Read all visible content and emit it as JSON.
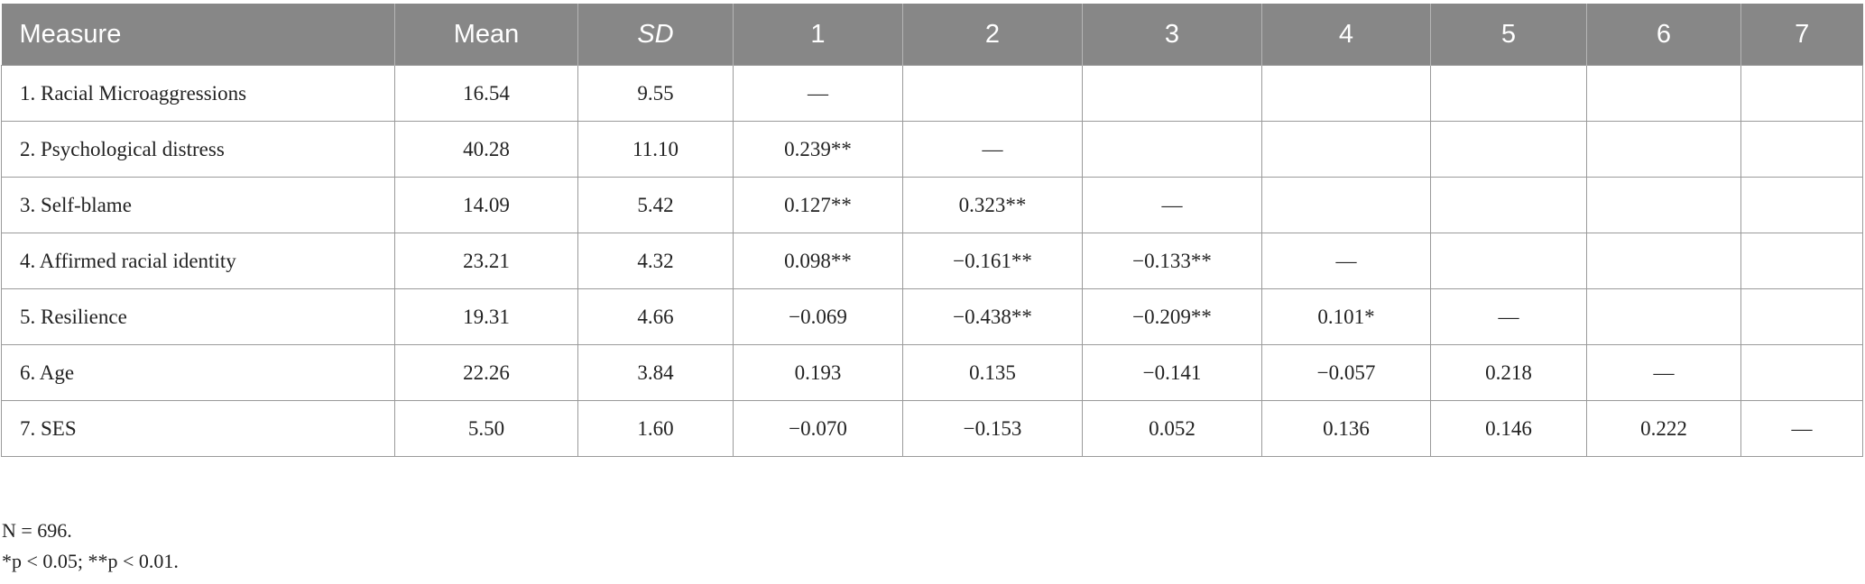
{
  "table": {
    "header": [
      "Measure",
      "Mean",
      "SD",
      "1",
      "2",
      "3",
      "4",
      "5",
      "6",
      "7"
    ],
    "rows": [
      [
        "1.  Racial Microaggressions",
        "16.54",
        "9.55",
        "—"
      ],
      [
        "2.  Psychological distress",
        "40.28",
        "11.10",
        "0.239**",
        "—"
      ],
      [
        "3.  Self-blame",
        "14.09",
        "5.42",
        "0.127**",
        "0.323**",
        "—"
      ],
      [
        "4.  Affirmed racial identity",
        "23.21",
        "4.32",
        "0.098**",
        "−0.161**",
        "−0.133**",
        "—"
      ],
      [
        "5.  Resilience",
        "19.31",
        "4.66",
        "−0.069",
        "−0.438**",
        "−0.209**",
        "0.101*",
        "—"
      ],
      [
        "6.  Age",
        "22.26",
        "3.84",
        "0.193",
        "0.135",
        "−0.141",
        "−0.057",
        "0.218",
        "—"
      ],
      [
        "7.  SES",
        "5.50",
        "1.60",
        "−0.070",
        "−0.153",
        "0.052",
        "0.136",
        "0.146",
        "0.222",
        "—"
      ]
    ]
  },
  "notes": [
    "N = 696.",
    "*p < 0.05; **p < 0.01."
  ]
}
